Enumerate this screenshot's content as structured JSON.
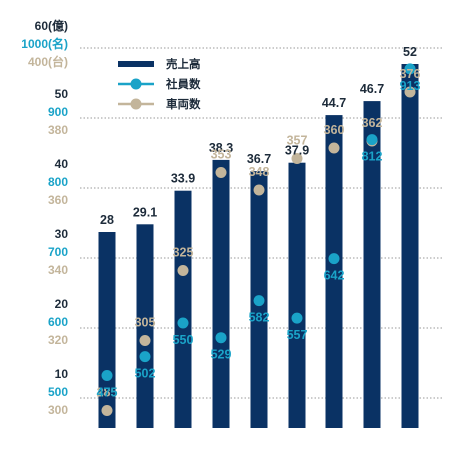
{
  "chart_data": {
    "type": "bar",
    "colors": {
      "sales": "#0a3264",
      "employees": "#1aa3c8",
      "vehicles": "#c3b59b",
      "grid": "#9a9a9a"
    },
    "axes": {
      "sales": {
        "unit_label": "60(億)",
        "ticks": [
          10,
          20,
          30,
          40,
          50,
          60
        ]
      },
      "employees": {
        "unit_label": "1000(名)",
        "ticks": [
          500,
          600,
          700,
          800,
          900,
          1000
        ]
      },
      "vehicles": {
        "unit_label": "400(台)",
        "ticks": [
          300,
          320,
          340,
          360,
          380,
          400
        ]
      }
    },
    "legend": [
      {
        "key": "sales",
        "label": "売上高",
        "marker": "bar"
      },
      {
        "key": "employees",
        "label": "社員数",
        "marker": "line-dot"
      },
      {
        "key": "vehicles",
        "label": "車両数",
        "marker": "line-dot"
      }
    ],
    "categories": [
      "",
      "",
      "",
      "",
      "",
      "",
      "",
      "",
      ""
    ],
    "series": [
      {
        "name": "売上高",
        "key": "sales",
        "values": [
          28,
          29.1,
          33.9,
          38.3,
          36.7,
          37.9,
          44.7,
          46.7,
          52
        ]
      },
      {
        "name": "社員数",
        "key": "employees",
        "values": [
          475,
          502,
          550,
          529,
          582,
          557,
          642,
          812,
          913
        ]
      },
      {
        "name": "車両数",
        "key": "vehicles",
        "values": [
          285,
          305,
          325,
          353,
          348,
          357,
          360,
          362,
          376
        ]
      }
    ],
    "value_labels": {
      "sales": [
        "28",
        "29.1",
        "33.9",
        "38.3",
        "36.7",
        "37.9",
        "44.7",
        "46.7",
        "52"
      ],
      "employees": [
        "475",
        "502",
        "550",
        "529",
        "582",
        "557",
        "642",
        "812",
        "913"
      ],
      "vehicles": [
        "285",
        "305",
        "325",
        "353",
        "348",
        "357",
        "360",
        "362",
        "376"
      ]
    }
  }
}
